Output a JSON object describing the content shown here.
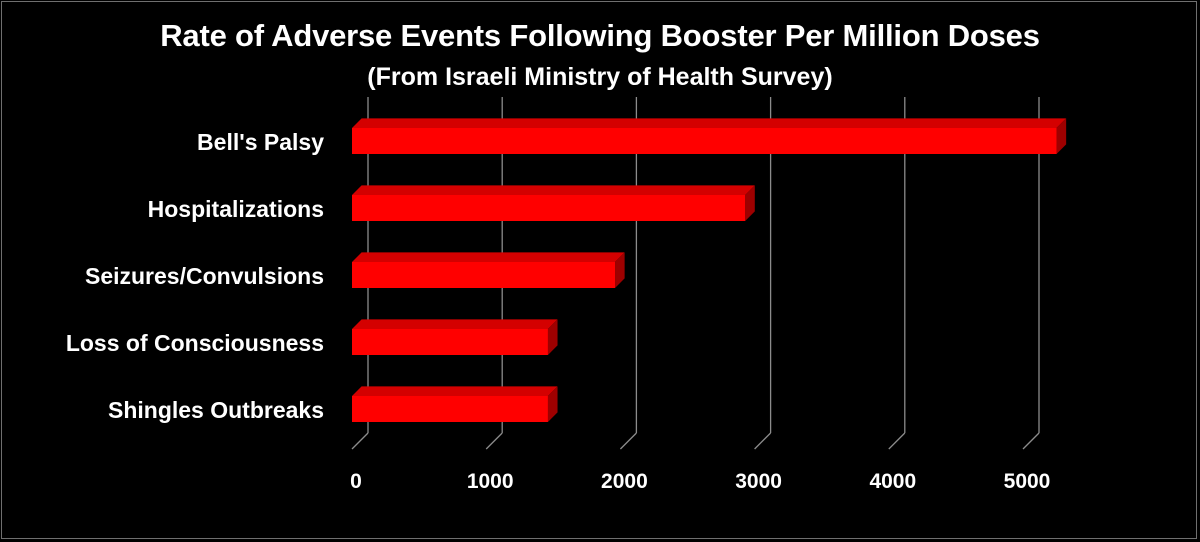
{
  "chart_data": {
    "type": "bar",
    "orientation": "horizontal",
    "style": "3d",
    "title": "Rate of Adverse Events Following Booster Per Million Doses",
    "subtitle": "(From Israeli Ministry of Health Survey)",
    "categories": [
      "Bell's Palsy",
      "Hospitalizations",
      "Seizures/Convulsions",
      "Loss of Consciousness",
      "Shingles Outbreaks"
    ],
    "values": [
      5250,
      2930,
      1960,
      1460,
      1460
    ],
    "xlim": [
      0,
      5000
    ],
    "xticks": [
      0,
      1000,
      2000,
      3000,
      4000,
      5000
    ],
    "tick_labels": [
      "0",
      "1000",
      "2000",
      "3000",
      "4000",
      "5000"
    ],
    "xlabel": "",
    "ylabel": "",
    "grid": true,
    "legend": "none",
    "colors": {
      "background": "#000000",
      "bar_front": "#ff0000",
      "bar_top": "#d40000",
      "bar_side": "#9e0000",
      "gridline": "#8c8c8c",
      "text": "#ffffff"
    }
  }
}
